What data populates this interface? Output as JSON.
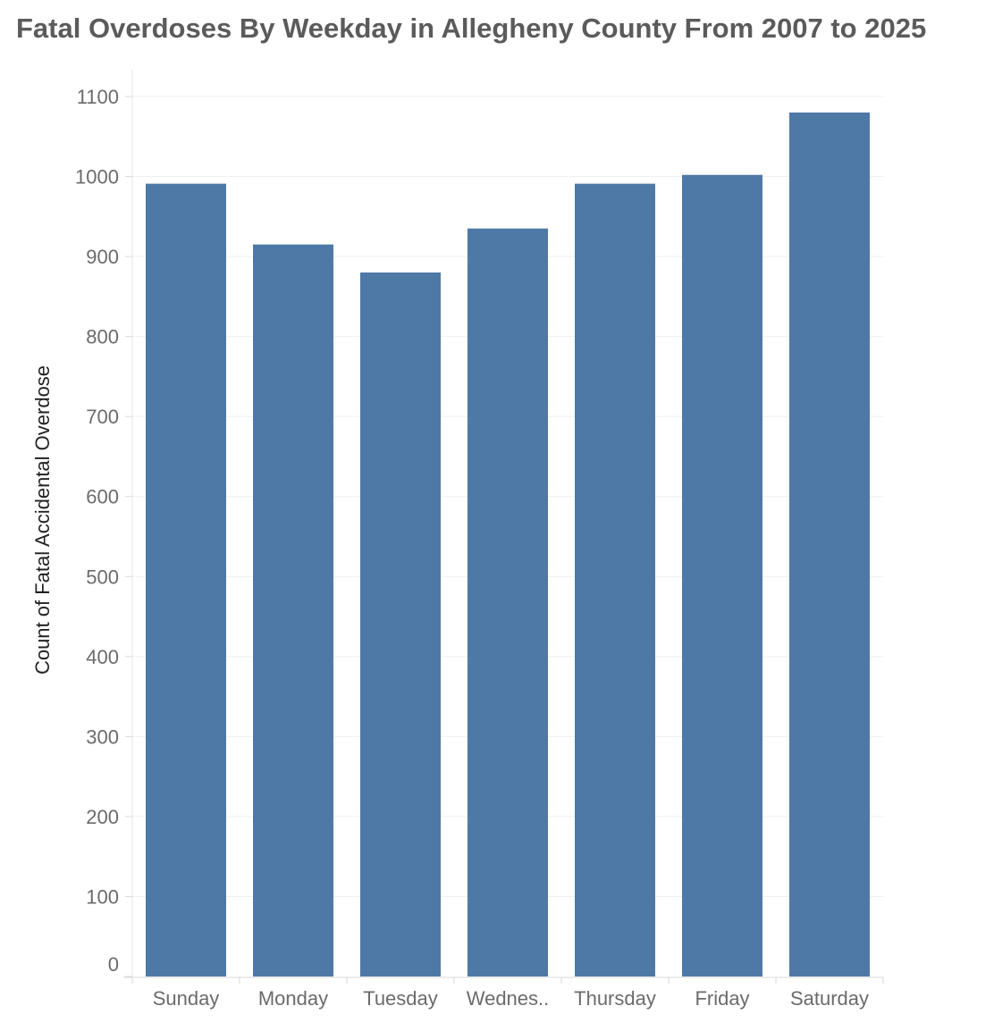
{
  "chart_data": {
    "type": "bar",
    "title": "Fatal Overdoses By Weekday in Allegheny County From 2007 to 2025",
    "xlabel": "",
    "ylabel": "Count of Fatal Accidental Overdose",
    "categories": [
      "Sunday",
      "Monday",
      "Tuesday",
      "Wednes..",
      "Thursday",
      "Friday",
      "Saturday"
    ],
    "values": [
      991,
      915,
      880,
      935,
      991,
      1002,
      1080
    ],
    "ylim": [
      0,
      1100
    ],
    "yticks": [
      0,
      100,
      200,
      300,
      400,
      500,
      600,
      700,
      800,
      900,
      1000,
      1100
    ],
    "grid": true,
    "legend": "none",
    "bar_color": "#4e79a7"
  }
}
